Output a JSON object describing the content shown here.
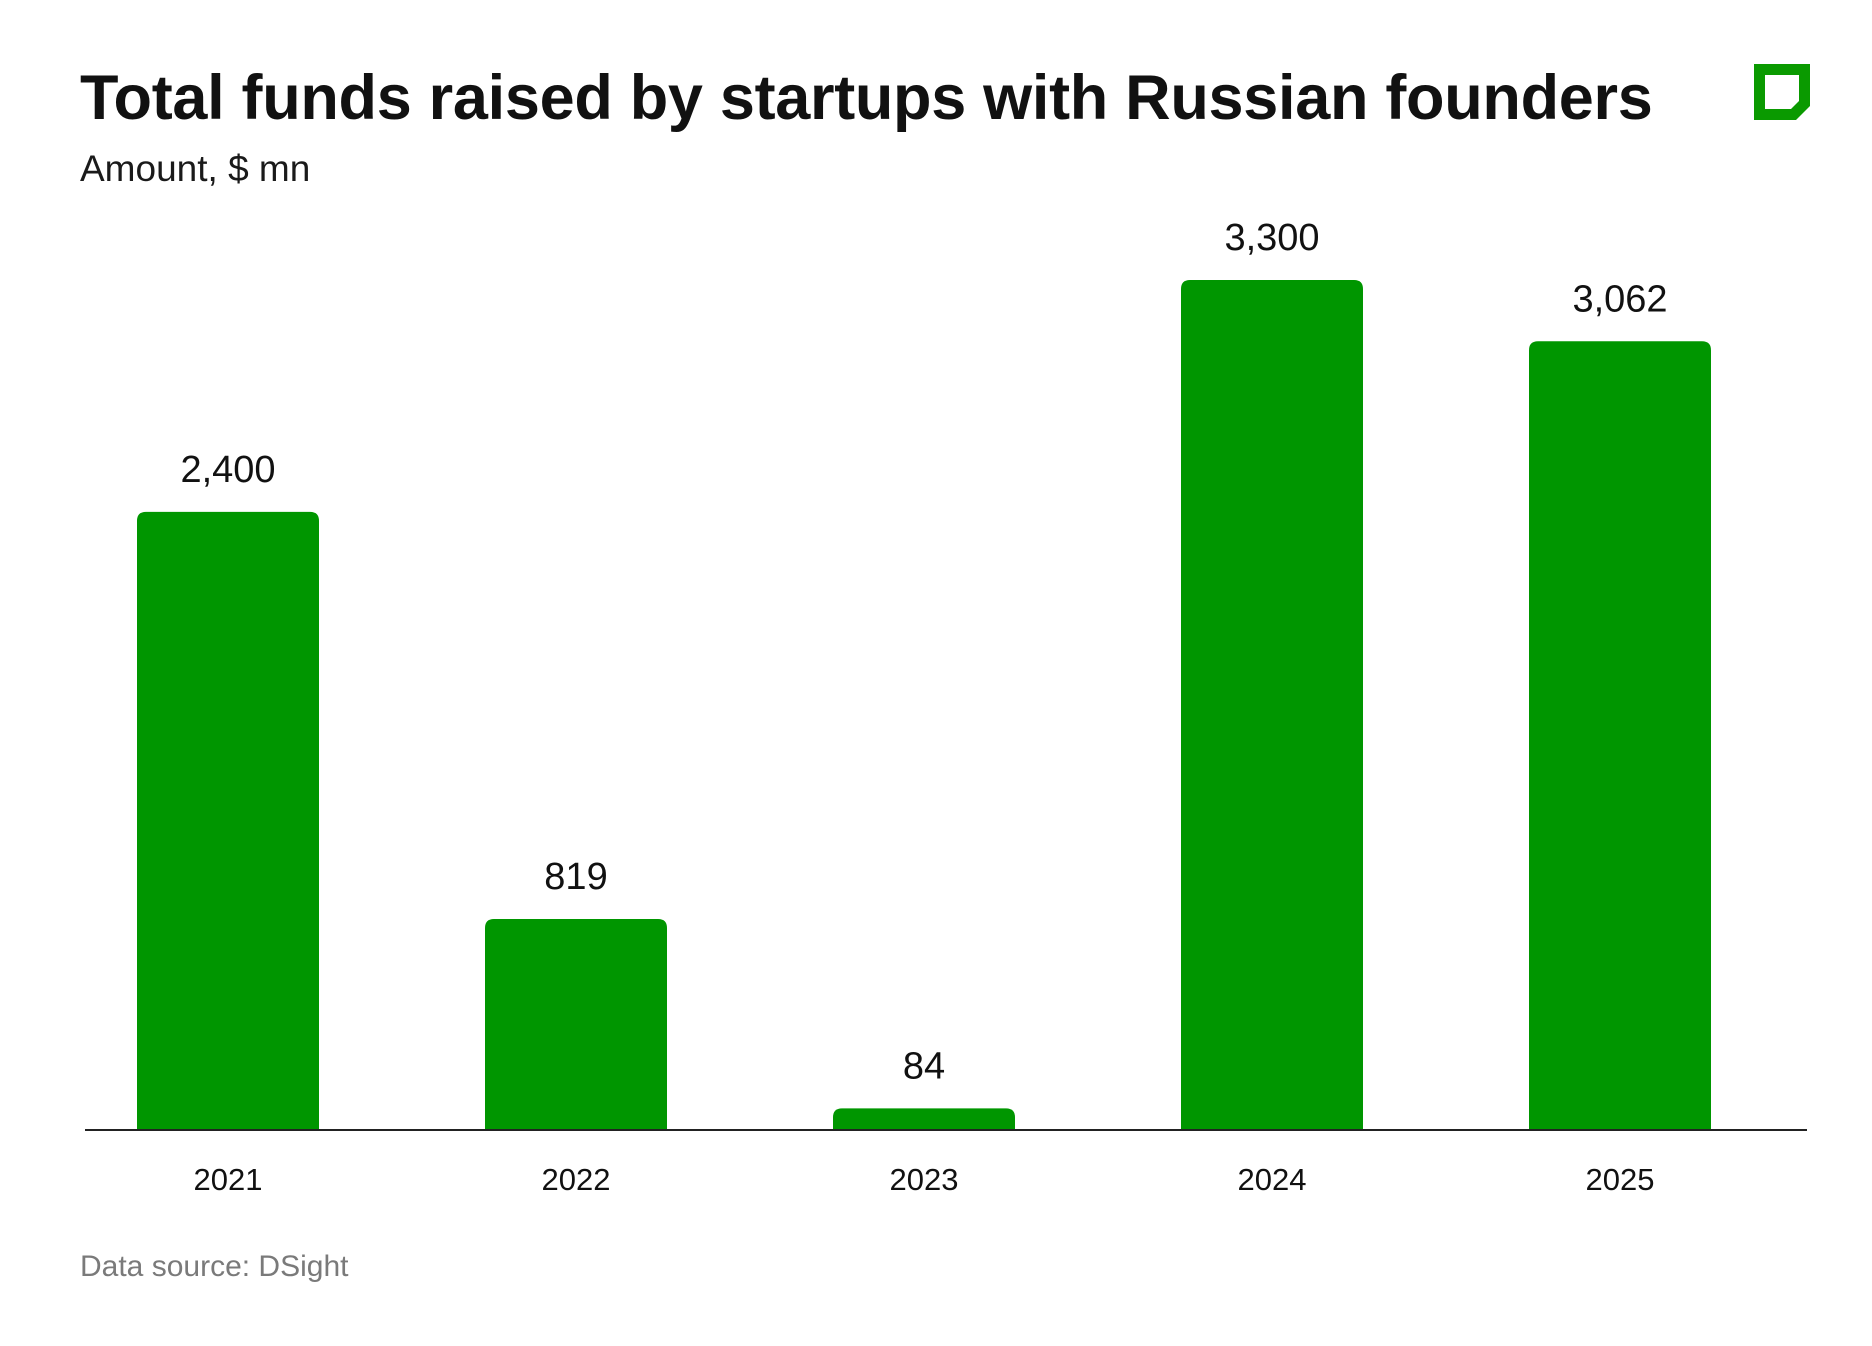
{
  "header": {
    "title": "Total funds raised by startups with Russian founders",
    "subtitle": "Amount, $ mn"
  },
  "logo": {
    "icon": "brand-square-logo-icon",
    "color": "#0a9a00"
  },
  "footer": {
    "source": "Data source: DSight"
  },
  "colors": {
    "bar": "#009600",
    "axis": "#222222",
    "text": "#111111",
    "source_text": "#7a7a7a"
  },
  "chart_data": {
    "type": "bar",
    "title": "Total funds raised by startups with Russian founders",
    "subtitle": "Amount, $ mn",
    "categories": [
      "2021",
      "2022",
      "2023",
      "2024",
      "2025"
    ],
    "values": [
      2400,
      819,
      84,
      3300,
      3062
    ],
    "value_labels": [
      "2,400",
      "819",
      "84",
      "3,300",
      "3,062"
    ],
    "ylim": [
      0,
      3300
    ],
    "grid": false,
    "legend": "none"
  }
}
